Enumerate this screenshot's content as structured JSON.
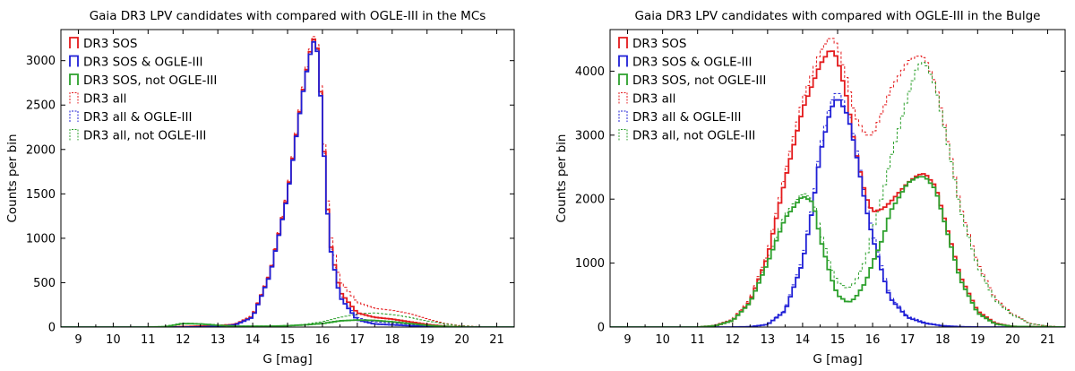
{
  "colors": {
    "sos": "#e41a1c",
    "sos_ogle": "#1f1fd6",
    "sos_not": "#2ca02c",
    "all": "#e41a1c",
    "all_ogle": "#1f1fd6",
    "all_not": "#2ca02c"
  },
  "chart_data": [
    {
      "type": "line",
      "title": "Gaia DR3 LPV candidates with compared with OGLE-III in the MCs",
      "xlabel": "G [mag]",
      "ylabel": "Counts per bin",
      "xlim": [
        8.5,
        21.5
      ],
      "ylim": [
        0,
        3350
      ],
      "xticks": [
        9,
        10,
        11,
        12,
        13,
        14,
        15,
        16,
        17,
        18,
        19,
        20,
        21
      ],
      "yticks": [
        0,
        500,
        1000,
        1500,
        2000,
        2500,
        3000
      ],
      "legend_position": "top-left",
      "series": [
        {
          "name": "DR3 SOS",
          "color_key": "sos",
          "style": "solid",
          "x": [
            8.5,
            11.5,
            12.0,
            12.5,
            13.0,
            13.5,
            14.0,
            14.5,
            15.0,
            15.3,
            15.5,
            15.7,
            15.8,
            15.9,
            16.0,
            16.2,
            16.5,
            17.0,
            17.5,
            18.0,
            18.5,
            19.0,
            19.5,
            20.0,
            21.5
          ],
          "y": [
            0,
            0,
            5,
            10,
            15,
            30,
            120,
            600,
            1500,
            2300,
            2800,
            3200,
            3280,
            3000,
            2300,
            1000,
            400,
            160,
            110,
            90,
            60,
            30,
            10,
            0,
            0
          ]
        },
        {
          "name": "DR3 SOS & OGLE-III",
          "color_key": "sos_ogle",
          "style": "solid",
          "x": [
            8.5,
            11.5,
            12.0,
            12.5,
            13.0,
            13.5,
            14.0,
            14.5,
            15.0,
            15.3,
            15.5,
            15.7,
            15.8,
            15.9,
            16.0,
            16.2,
            16.5,
            17.0,
            17.5,
            18.0,
            18.5,
            19.0,
            19.5,
            20.0,
            21.5
          ],
          "y": [
            0,
            0,
            0,
            2,
            8,
            25,
            110,
            590,
            1480,
            2280,
            2780,
            3170,
            3250,
            2960,
            2250,
            950,
            340,
            80,
            35,
            25,
            15,
            8,
            3,
            0,
            0
          ]
        },
        {
          "name": "DR3 SOS, not OGLE-III",
          "color_key": "sos_not",
          "style": "solid",
          "x": [
            8.5,
            11.0,
            11.5,
            12.0,
            12.5,
            13.0,
            13.5,
            14.0,
            14.5,
            15.0,
            15.5,
            16.0,
            16.5,
            17.0,
            17.5,
            18.0,
            18.5,
            19.0,
            19.5,
            20.0,
            21.5
          ],
          "y": [
            0,
            0,
            5,
            40,
            35,
            20,
            10,
            10,
            10,
            15,
            25,
            40,
            70,
            80,
            75,
            60,
            40,
            20,
            8,
            0,
            0
          ]
        },
        {
          "name": "DR3 all",
          "color_key": "all",
          "style": "dashed",
          "x": [
            8.5,
            11.5,
            12.0,
            12.5,
            13.0,
            13.5,
            14.0,
            14.5,
            15.0,
            15.3,
            15.5,
            15.7,
            15.8,
            15.9,
            16.0,
            16.2,
            16.5,
            17.0,
            17.5,
            18.0,
            18.5,
            19.0,
            19.5,
            20.0,
            20.5,
            21.5
          ],
          "y": [
            0,
            0,
            8,
            15,
            20,
            35,
            130,
            610,
            1520,
            2320,
            2830,
            3230,
            3310,
            3050,
            2380,
            1100,
            520,
            280,
            210,
            190,
            150,
            90,
            40,
            15,
            5,
            0
          ]
        },
        {
          "name": "DR3 all & OGLE-III",
          "color_key": "all_ogle",
          "style": "dashed",
          "x": [
            8.5,
            11.5,
            12.0,
            12.5,
            13.0,
            13.5,
            14.0,
            14.5,
            15.0,
            15.3,
            15.5,
            15.7,
            15.8,
            15.9,
            16.0,
            16.2,
            16.5,
            17.0,
            17.5,
            18.0,
            18.5,
            19.0,
            19.5,
            20.0,
            21.5
          ],
          "y": [
            0,
            0,
            0,
            3,
            9,
            27,
            115,
            595,
            1490,
            2290,
            2790,
            3190,
            3270,
            2980,
            2280,
            980,
            360,
            110,
            60,
            45,
            30,
            15,
            5,
            0,
            0
          ]
        },
        {
          "name": "DR3 all, not OGLE-III",
          "color_key": "all_not",
          "style": "dashed",
          "x": [
            8.5,
            11.0,
            11.5,
            12.0,
            12.5,
            13.0,
            13.5,
            14.0,
            14.5,
            15.0,
            15.5,
            16.0,
            16.5,
            17.0,
            17.5,
            18.0,
            18.5,
            19.0,
            19.5,
            20.0,
            20.5,
            21.5
          ],
          "y": [
            0,
            0,
            6,
            45,
            40,
            25,
            12,
            12,
            12,
            18,
            30,
            60,
            110,
            150,
            160,
            140,
            110,
            70,
            35,
            12,
            4,
            0
          ]
        }
      ]
    },
    {
      "type": "line",
      "title": "Gaia DR3 LPV candidates with compared with OGLE-III in the Bulge",
      "xlabel": "G [mag]",
      "ylabel": "Counts per bin",
      "xlim": [
        8.5,
        21.5
      ],
      "ylim": [
        0,
        4650
      ],
      "xticks": [
        9,
        10,
        11,
        12,
        13,
        14,
        15,
        16,
        17,
        18,
        19,
        20,
        21
      ],
      "yticks": [
        0,
        1000,
        2000,
        3000,
        4000
      ],
      "legend_position": "top-left",
      "series": [
        {
          "name": "DR3 SOS",
          "color_key": "sos",
          "style": "solid",
          "x": [
            8.5,
            11.0,
            11.5,
            12.0,
            12.5,
            13.0,
            13.5,
            14.0,
            14.5,
            14.8,
            15.0,
            15.3,
            15.5,
            15.8,
            16.0,
            16.3,
            16.5,
            17.0,
            17.3,
            17.5,
            17.8,
            18.0,
            18.3,
            18.5,
            19.0,
            19.5,
            20.0,
            21.5
          ],
          "y": [
            0,
            0,
            20,
            100,
            400,
            1100,
            2300,
            3400,
            4100,
            4350,
            4200,
            3500,
            2800,
            2050,
            1800,
            1850,
            1950,
            2250,
            2380,
            2400,
            2200,
            1800,
            1200,
            800,
            250,
            60,
            10,
            0
          ]
        },
        {
          "name": "DR3 SOS & OGLE-III",
          "color_key": "sos_ogle",
          "style": "solid",
          "x": [
            8.5,
            12.0,
            12.5,
            13.0,
            13.5,
            14.0,
            14.3,
            14.5,
            14.8,
            15.0,
            15.3,
            15.5,
            15.8,
            16.0,
            16.3,
            16.5,
            17.0,
            17.5,
            18.0,
            18.5,
            19.0,
            21.5
          ],
          "y": [
            0,
            0,
            5,
            40,
            250,
            1000,
            1900,
            2700,
            3400,
            3600,
            3300,
            2800,
            1900,
            1400,
            800,
            450,
            150,
            60,
            20,
            5,
            0,
            0
          ]
        },
        {
          "name": "DR3 SOS, not OGLE-III",
          "color_key": "sos_not",
          "style": "solid",
          "x": [
            8.5,
            11.0,
            11.5,
            12.0,
            12.5,
            13.0,
            13.5,
            14.0,
            14.3,
            14.5,
            14.8,
            15.0,
            15.3,
            15.5,
            15.8,
            16.0,
            16.3,
            16.5,
            17.0,
            17.3,
            17.5,
            17.8,
            18.0,
            18.3,
            18.5,
            19.0,
            19.5,
            20.0,
            21.5
          ],
          "y": [
            0,
            0,
            20,
            100,
            380,
            1000,
            1700,
            2050,
            1950,
            1400,
            800,
            500,
            380,
            450,
            700,
            1000,
            1400,
            1800,
            2250,
            2350,
            2350,
            2150,
            1750,
            1150,
            750,
            220,
            50,
            10,
            0
          ]
        },
        {
          "name": "DR3 all",
          "color_key": "all",
          "style": "dashed",
          "x": [
            8.5,
            11.0,
            11.5,
            12.0,
            12.5,
            13.0,
            13.5,
            14.0,
            14.5,
            14.8,
            15.0,
            15.3,
            15.5,
            15.8,
            16.0,
            16.3,
            16.5,
            17.0,
            17.3,
            17.5,
            17.8,
            18.0,
            18.3,
            18.5,
            19.0,
            19.5,
            20.0,
            20.5,
            21.0,
            21.5
          ],
          "y": [
            0,
            0,
            30,
            120,
            430,
            1150,
            2400,
            3550,
            4300,
            4550,
            4400,
            3800,
            3300,
            3000,
            3000,
            3400,
            3700,
            4150,
            4250,
            4200,
            3800,
            3300,
            2500,
            1900,
            1000,
            450,
            200,
            60,
            15,
            0
          ]
        },
        {
          "name": "DR3 all & OGLE-III",
          "color_key": "all_ogle",
          "style": "dashed",
          "x": [
            8.5,
            12.0,
            12.5,
            13.0,
            13.5,
            14.0,
            14.3,
            14.5,
            14.8,
            15.0,
            15.3,
            15.5,
            15.8,
            16.0,
            16.3,
            16.5,
            17.0,
            17.5,
            18.0,
            18.5,
            19.0,
            21.5
          ],
          "y": [
            0,
            0,
            6,
            45,
            270,
            1050,
            1950,
            2800,
            3500,
            3700,
            3400,
            2900,
            2000,
            1500,
            850,
            480,
            170,
            70,
            25,
            6,
            0,
            0
          ]
        },
        {
          "name": "DR3 all, not OGLE-III",
          "color_key": "all_not",
          "style": "dashed",
          "x": [
            8.5,
            11.0,
            11.5,
            12.0,
            12.5,
            13.0,
            13.5,
            14.0,
            14.3,
            14.5,
            14.8,
            15.0,
            15.3,
            15.5,
            15.8,
            16.0,
            16.3,
            16.5,
            17.0,
            17.3,
            17.5,
            17.8,
            18.0,
            18.3,
            18.5,
            19.0,
            19.5,
            20.0,
            20.5,
            21.0,
            21.5
          ],
          "y": [
            0,
            0,
            25,
            110,
            400,
            1050,
            1750,
            2100,
            2000,
            1500,
            950,
            700,
            600,
            700,
            1050,
            1500,
            2100,
            2600,
            3600,
            4100,
            4150,
            3750,
            3250,
            2450,
            1850,
            950,
            420,
            190,
            55,
            15,
            0
          ]
        }
      ]
    }
  ]
}
